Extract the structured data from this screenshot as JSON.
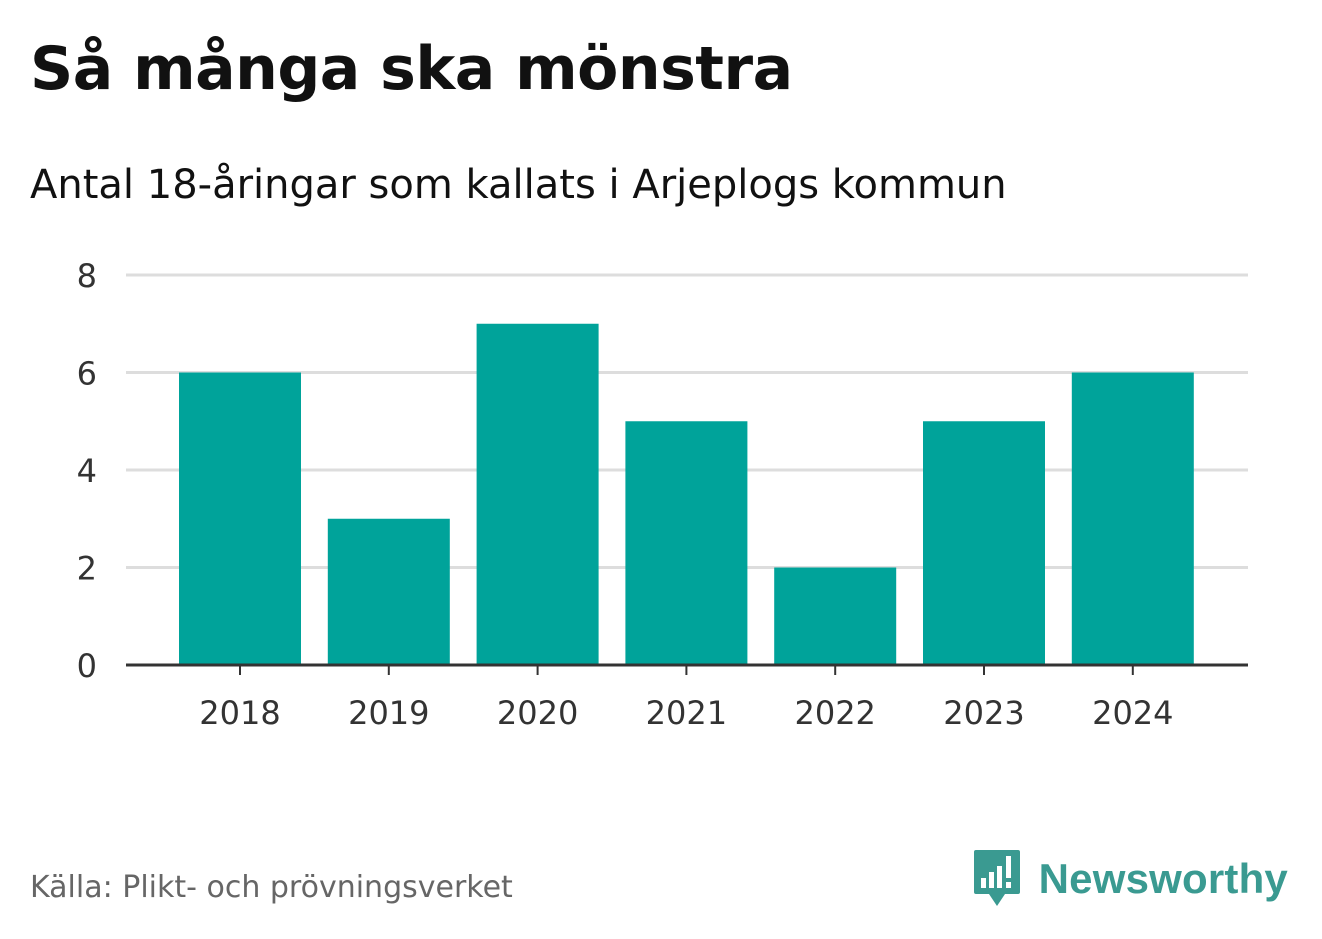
{
  "header": {
    "title": "Så många ska mönstra",
    "subtitle": "Antal 18-åringar som kallats i Arjeplogs kommun"
  },
  "footer": {
    "source": "Källa: Plikt- och prövningsverket",
    "brand": "Newsworthy"
  },
  "colors": {
    "bar": "#00a39a",
    "grid": "#dddddd",
    "axis": "#333333",
    "brand": "#3a9a91"
  },
  "icons": {
    "brand_logo": "bar-chart-speech-bubble-icon"
  },
  "chart_data": {
    "type": "bar",
    "title": "Så många ska mönstra",
    "subtitle": "Antal 18-åringar som kallats i Arjeplogs kommun",
    "xlabel": "",
    "ylabel": "",
    "categories": [
      "2018",
      "2019",
      "2020",
      "2021",
      "2022",
      "2023",
      "2024"
    ],
    "values": [
      6,
      3,
      7,
      5,
      2,
      5,
      6
    ],
    "ylim": [
      0,
      8
    ],
    "yticks": [
      0,
      2,
      4,
      6,
      8
    ],
    "grid": true,
    "legend": false
  }
}
